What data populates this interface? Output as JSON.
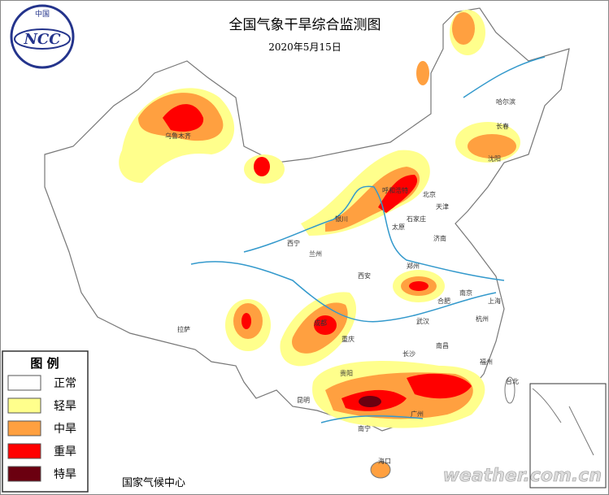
{
  "header": {
    "title": "全国气象干旱综合监测图",
    "date": "2020年5月15日",
    "logo_top": "中国",
    "logo_text": "NCC"
  },
  "legend": {
    "title": "图 例",
    "items": [
      {
        "label": "正常",
        "color": "#ffffff"
      },
      {
        "label": "轻旱",
        "color": "#ffff8c"
      },
      {
        "label": "中旱",
        "color": "#ffa040"
      },
      {
        "label": "重旱",
        "color": "#ff0000"
      },
      {
        "label": "特旱",
        "color": "#6b0010"
      }
    ]
  },
  "cities": [
    "乌鲁木齐",
    "哈尔滨",
    "长春",
    "沈阳",
    "北京",
    "天津",
    "呼和浩特",
    "石家庄",
    "太原",
    "济南",
    "银川",
    "西宁",
    "兰州",
    "郑州",
    "西安",
    "南京",
    "合肥",
    "上海",
    "武汉",
    "杭州",
    "成都",
    "重庆",
    "长沙",
    "南昌",
    "拉萨",
    "贵阳",
    "昆明",
    "福州",
    "台北",
    "广州",
    "南宁",
    "海口"
  ],
  "footer": {
    "source": "国家气候中心",
    "watermark": "weather.com.cn"
  }
}
